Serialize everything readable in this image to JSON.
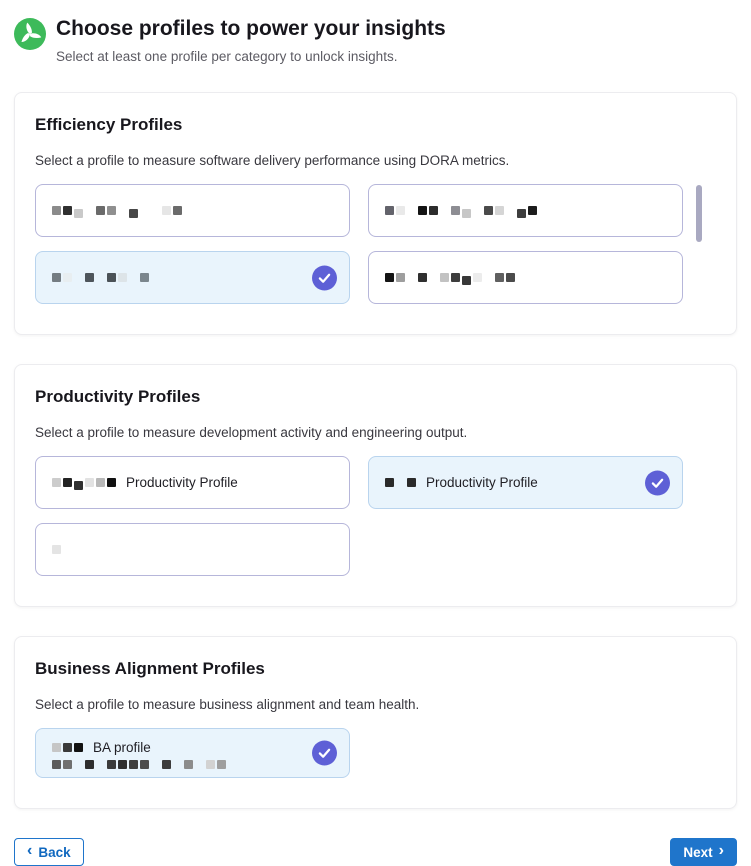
{
  "header": {
    "logo_icon": "propeller-icon",
    "title": "Choose profiles to power your insights",
    "subtitle": "Select at least one profile per category to unlock insights."
  },
  "colors": {
    "accent_blue": "#1f75cb",
    "accent_blue_dark": "#1068bf",
    "check_indigo": "#5e60d6",
    "selected_card_bg": "#e9f4fc",
    "selected_card_border": "#b9d4ee",
    "card_border": "#b6b6da",
    "logo_green": "#3dba5a",
    "scrollbar_thumb": "#a9a9c1"
  },
  "sections": [
    {
      "title": "Efficiency Profiles",
      "subtitle": "Select a profile to measure software delivery performance using DORA metrics.",
      "scrollbar": true,
      "cards": [
        {
          "label": "",
          "selected": false,
          "mosaic": [
            "#8b8b8b",
            "#303030",
            "#c9c9c9",
            "",
            "#6a6a6a",
            "#8f8f8f",
            "",
            "#474747",
            "",
            "",
            "#e6e6e6",
            "#6b6b6b"
          ]
        },
        {
          "label": "",
          "selected": false,
          "mosaic": [
            "#63636b",
            "#e9e9e9",
            "",
            "#141414",
            "#2c2c2c",
            "",
            "#8d8d93",
            "#c7c7c7",
            "",
            "#4a4a4a",
            "#d5d5d5",
            "",
            "#3e3e3e",
            "#1c1c1c"
          ]
        },
        {
          "label": "",
          "selected": true,
          "mosaic": [
            "#747c82",
            "#e8eef1",
            "",
            "#4e555b",
            "",
            "#4b5257",
            "#dde4e8",
            "",
            "#7b868d"
          ]
        },
        {
          "label": "",
          "selected": false,
          "mosaic": [
            "#141414",
            "#9e9e9e",
            "",
            "#2f2f2f",
            "",
            "#c2c2c2",
            "#3d3d3d",
            "#383838",
            "#ececec",
            "",
            "#606060",
            "#4b4b4b"
          ]
        }
      ]
    },
    {
      "title": "Productivity Profiles",
      "subtitle": "Select a profile to measure development activity and engineering output.",
      "scrollbar": false,
      "cards": [
        {
          "label": "Productivity Profile",
          "selected": false,
          "mosaic": [
            "#cccccc",
            "#232323",
            "#303030",
            "#e2e2e2",
            "#b8b8b8",
            "#101010"
          ]
        },
        {
          "label": "Productivity Profile",
          "selected": true,
          "mosaic": [
            "#2a2a2a",
            "",
            "#2a2a2a"
          ]
        },
        {
          "label": "",
          "selected": false,
          "mosaic": [
            "#e4e4e4"
          ]
        }
      ]
    },
    {
      "title": "Business Alignment Profiles",
      "subtitle": "Select a profile to measure business alignment and team health.",
      "scrollbar": false,
      "cards": [
        {
          "label": "BA profile",
          "selected": true,
          "mosaic": [
            "#c6c6c6",
            "#3a3a3a",
            "#121212"
          ],
          "mosaic2": [
            "#5c5c5c",
            "#6f6f6f",
            "",
            "#2e2e2e",
            "",
            "#3b3b3b",
            "#2f2f2f",
            "#3e3e3e",
            "#4d4d4d",
            "",
            "#3c3c3c",
            "",
            "#8c8c8c",
            "",
            "#d2d2d2",
            "#9e9e9e"
          ]
        }
      ]
    }
  ],
  "footer": {
    "back_label": "Back",
    "back_chevron": "‹",
    "next_label": "Next",
    "next_chevron": "›"
  }
}
